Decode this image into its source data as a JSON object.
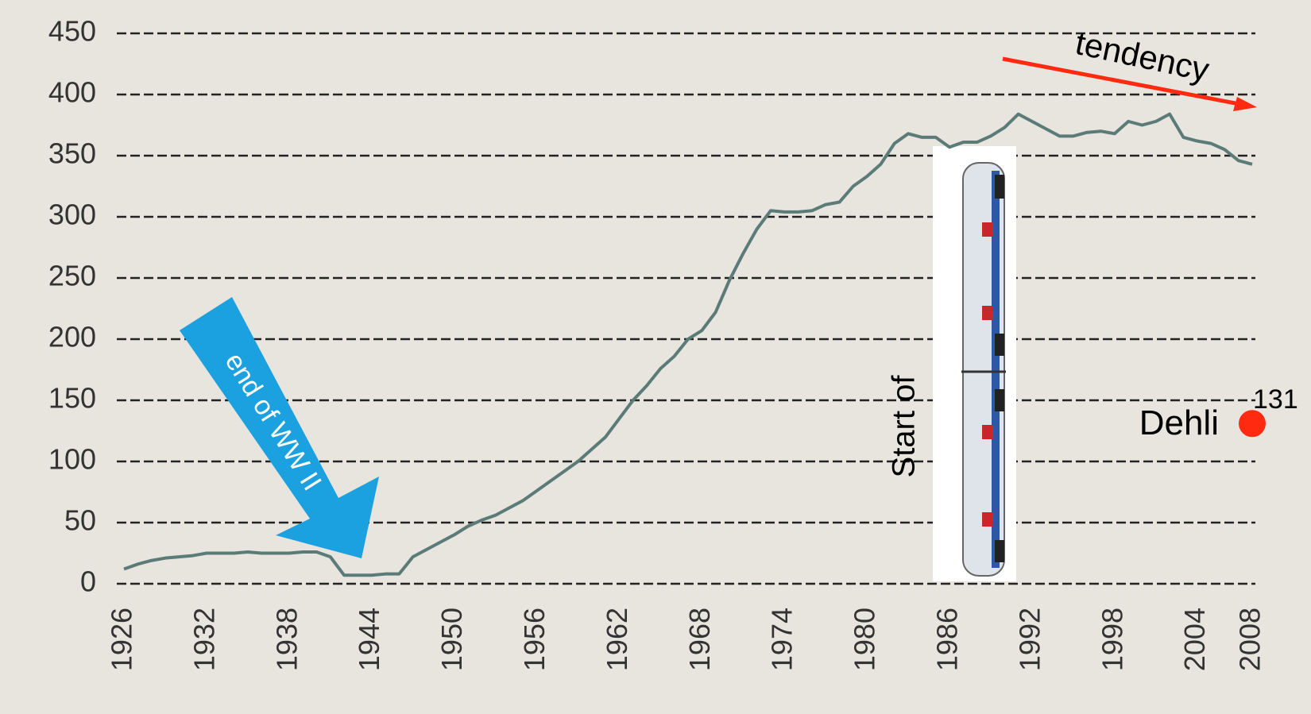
{
  "chart_data": {
    "type": "line",
    "x": [
      1926,
      1927,
      1928,
      1929,
      1930,
      1931,
      1932,
      1933,
      1934,
      1935,
      1936,
      1937,
      1938,
      1939,
      1940,
      1941,
      1942,
      1943,
      1944,
      1945,
      1946,
      1947,
      1948,
      1949,
      1950,
      1951,
      1952,
      1953,
      1954,
      1955,
      1956,
      1957,
      1958,
      1959,
      1960,
      1961,
      1962,
      1963,
      1964,
      1965,
      1966,
      1967,
      1968,
      1969,
      1970,
      1971,
      1972,
      1973,
      1974,
      1975,
      1976,
      1977,
      1978,
      1979,
      1980,
      1981,
      1982,
      1983,
      1984,
      1985,
      1986,
      1987,
      1988,
      1989,
      1990,
      1991,
      1992,
      1993,
      1994,
      1995,
      1996,
      1997,
      1998,
      1999,
      2000,
      2001,
      2002,
      2003,
      2004,
      2005,
      2006,
      2007,
      2008
    ],
    "values": [
      12,
      16,
      19,
      21,
      22,
      23,
      25,
      25,
      25,
      26,
      25,
      25,
      25,
      26,
      26,
      22,
      7,
      7,
      7,
      8,
      8,
      22,
      28,
      34,
      40,
      47,
      52,
      56,
      62,
      68,
      76,
      84,
      92,
      100,
      110,
      120,
      135,
      150,
      162,
      176,
      186,
      200,
      207,
      222,
      248,
      270,
      290,
      305,
      304,
      304,
      305,
      310,
      312,
      325,
      333,
      343,
      360,
      368,
      365,
      365,
      357,
      361,
      361,
      366,
      373,
      384,
      378,
      372,
      366,
      366,
      369,
      370,
      368,
      378,
      375,
      378,
      384,
      365,
      362,
      360,
      355,
      346,
      343
    ],
    "color": "#5b7b79",
    "xlim": [
      1926,
      2008
    ],
    "xticks": [
      1926,
      1932,
      1938,
      1944,
      1950,
      1956,
      1962,
      1968,
      1974,
      1980,
      1986,
      1992,
      1998,
      2004,
      2008
    ],
    "ylim": [
      0,
      450
    ],
    "yticks": [
      0,
      50,
      100,
      150,
      200,
      250,
      300,
      350,
      400,
      450
    ],
    "grid": true,
    "point": {
      "name": "Dehli",
      "x": 2008,
      "value": 131,
      "color": "#ff2a10"
    },
    "annotations": {
      "war": "end of WW II",
      "tendency": "tendency",
      "start": "Start of"
    }
  }
}
